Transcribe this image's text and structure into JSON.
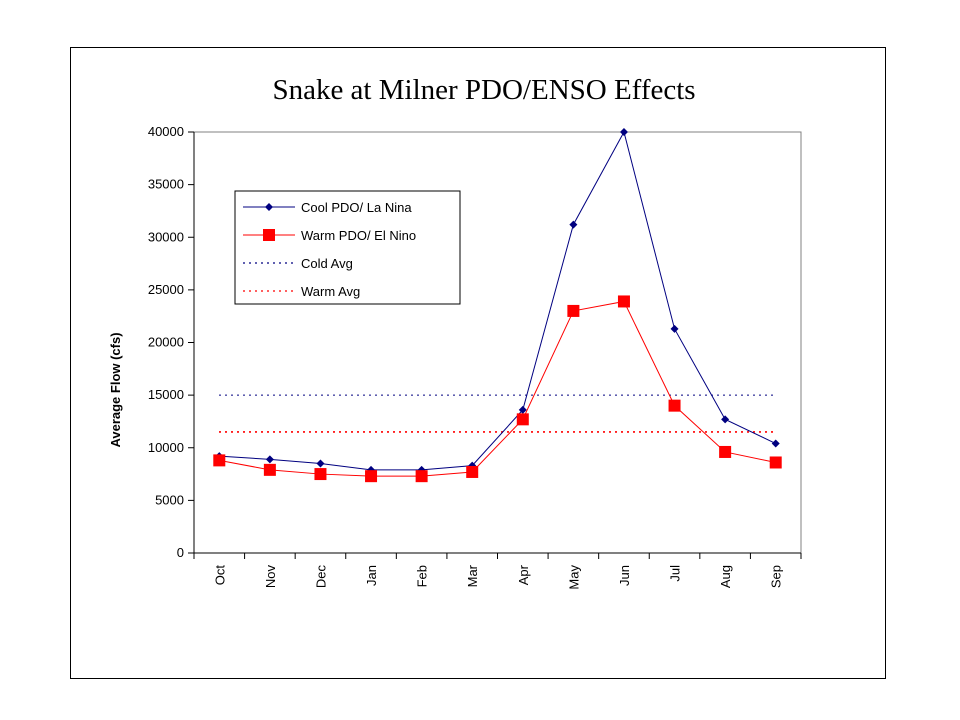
{
  "chart_data": {
    "type": "line",
    "title": "Snake at Milner PDO/ENSO Effects",
    "xlabel": "",
    "ylabel": "Average Flow (cfs)",
    "ylim": [
      0,
      40000
    ],
    "yticks": [
      0,
      5000,
      10000,
      15000,
      20000,
      25000,
      30000,
      35000,
      40000
    ],
    "categories": [
      "Oct",
      "Nov",
      "Dec",
      "Jan",
      "Feb",
      "Mar",
      "Apr",
      "May",
      "Jun",
      "Jul",
      "Aug",
      "Sep"
    ],
    "series": [
      {
        "name": "Cool PDO/ La Nina",
        "color": "#000080",
        "marker": "diamond",
        "values": [
          9200,
          8900,
          8500,
          7900,
          7900,
          8300,
          13600,
          31200,
          40000,
          21300,
          12700,
          10400
        ]
      },
      {
        "name": "Warm PDO/ El Nino",
        "color": "#ff0000",
        "marker": "square",
        "values": [
          8800,
          7900,
          7500,
          7300,
          7300,
          7700,
          12700,
          23000,
          23900,
          14000,
          9600,
          8600
        ]
      }
    ],
    "reference_lines": [
      {
        "name": "Cold Avg",
        "value": 15000,
        "color": "#000080",
        "style": "dotted"
      },
      {
        "name": "Warm Avg",
        "value": 11500,
        "color": "#ff0000",
        "style": "dotted"
      }
    ],
    "grid": false,
    "legend": "top-left"
  }
}
